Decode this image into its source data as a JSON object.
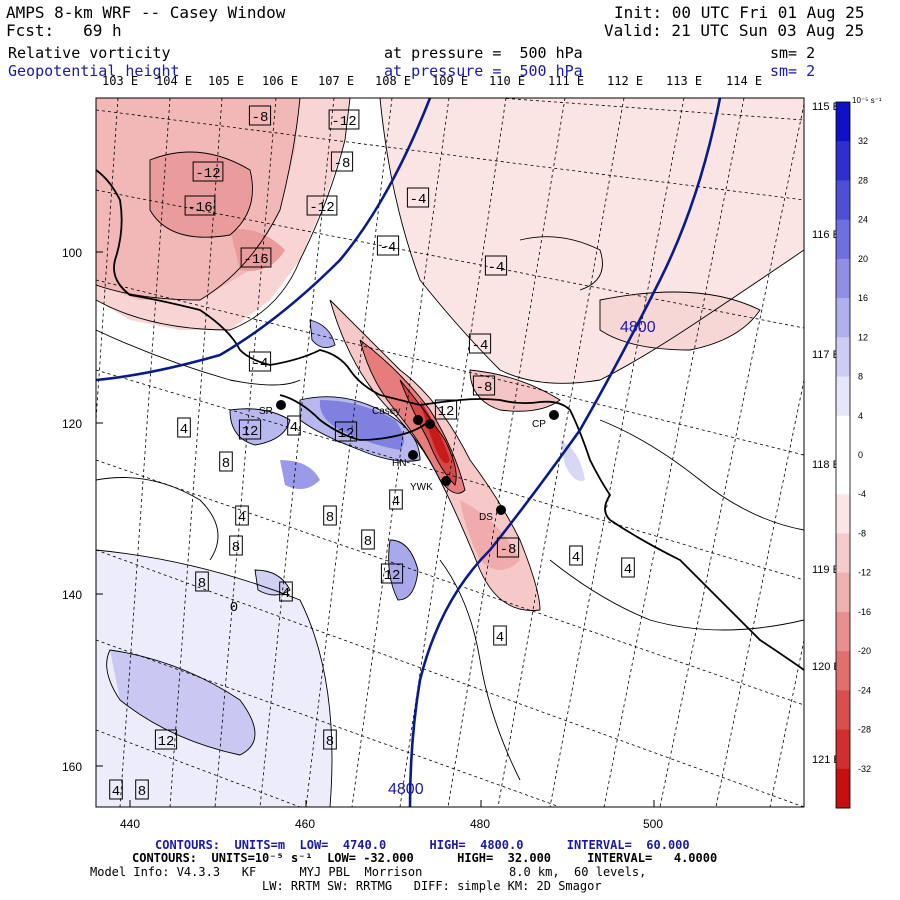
{
  "header": {
    "title": "AMPS 8-km WRF -- Casey Window",
    "init": "Init: 00 UTC Fri 01 Aug 25",
    "fcst": "Fcst:   69 h",
    "valid": "Valid: 21 UTC Sun 03 Aug 25",
    "field1": {
      "name": "Relative vorticity",
      "level": "at pressure =  500 hPa",
      "sm": "sm= 2"
    },
    "field2": {
      "name": "Geopotential height",
      "level": "at pressure =  500 hPa",
      "sm": "sm= 2"
    }
  },
  "top_lon_labels": [
    "103 E",
    "104 E",
    "105 E",
    "106 E",
    "107 E",
    "108 E",
    "109 E",
    "110 E",
    "111 E",
    "112 E",
    "113 E",
    "114 E"
  ],
  "right_lon_labels": [
    "115 E",
    "116 E",
    "117 E",
    "118 E",
    "119 E",
    "120 E",
    "121 E"
  ],
  "x_ticks": [
    "440",
    "460",
    "480",
    "500"
  ],
  "y_ticks": [
    "100",
    "120",
    "140",
    "160"
  ],
  "colorbar": {
    "unit": "10⁻⁵ s⁻¹",
    "labels": [
      "32",
      "28",
      "24",
      "20",
      "16",
      "12",
      "8",
      "4",
      "0",
      "-4",
      "-8",
      "-12",
      "-16",
      "-20",
      "-24",
      "-28",
      "-32"
    ]
  },
  "stations": [
    "SR",
    "Casey",
    "CP",
    "HN",
    "YWK",
    "DS"
  ],
  "vorticity_labels": [
    "-8",
    "-12",
    "-8",
    "-12",
    "-16",
    "-12",
    "-4",
    "-4",
    "-16",
    "-4",
    "-4",
    "-4",
    "-8",
    "12",
    "4",
    "12",
    "4",
    "12",
    "8",
    "4",
    "4",
    "8",
    "8",
    "8",
    "12",
    "4",
    "-8",
    "4",
    "4",
    "8",
    "4",
    "12",
    "8",
    "4",
    "8",
    "0"
  ],
  "height_labels": [
    "4800",
    "4800"
  ],
  "footer": {
    "line1": "CONTOURS:  UNITS=m  LOW=  4740.0      HIGH=  4800.0      INTERVAL=  60.000",
    "line2": "CONTOURS:  UNITS=10⁻⁵ s⁻¹  LOW= -32.000      HIGH=  32.000     INTERVAL=   4.0000",
    "line3": "Model Info: V4.3.3   KF      MYJ PBL  Morrison            8.0 km,  60 levels,",
    "line4": "LW: RRTM SW: RRTMG   DIFF: simple KM: 2D Smagor"
  },
  "colors": {
    "blue_text": "#1a1aa6",
    "height_contour": "#0a1a8a",
    "positive_scale": [
      "#ffffff",
      "#e6e6fa",
      "#ccccf5",
      "#b0b0ee",
      "#8f8fe6",
      "#6f6fde",
      "#4f4fd6",
      "#2f2fce",
      "#1010c6"
    ],
    "negative_scale": [
      "#ffffff",
      "#fae6e6",
      "#f5cccc",
      "#efb0b0",
      "#e88f8f",
      "#e06f6f",
      "#d84f4f",
      "#d02f2f",
      "#c61010"
    ]
  }
}
